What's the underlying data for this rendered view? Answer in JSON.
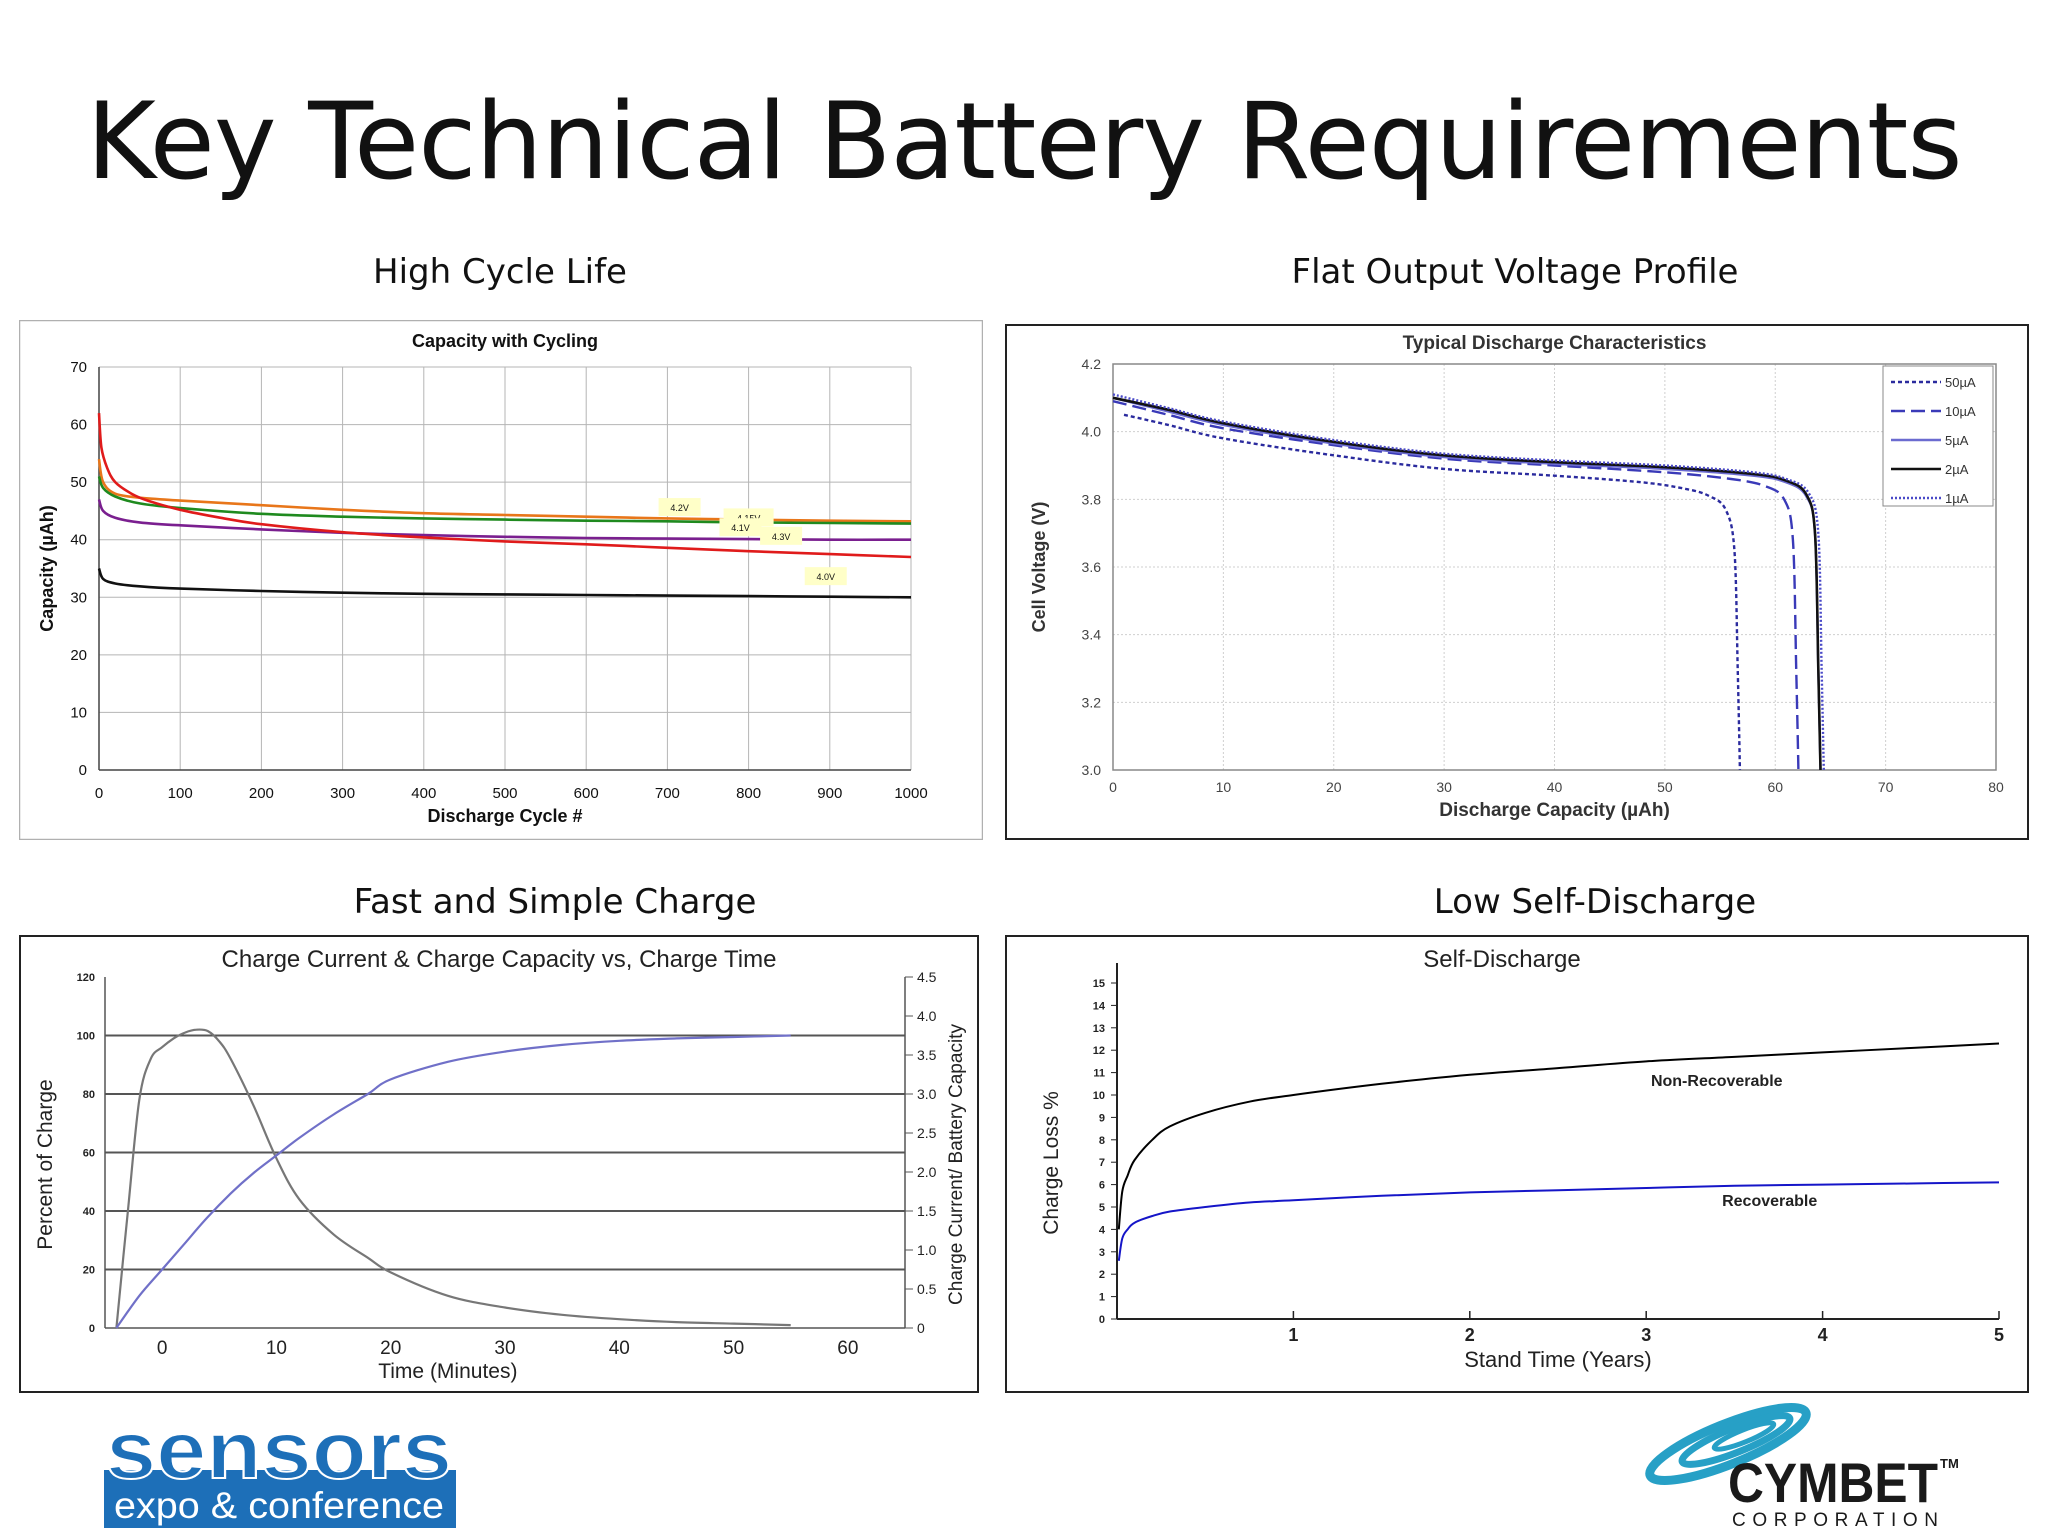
{
  "slide": {
    "title": "Key Technical Battery Requirements"
  },
  "sections": {
    "high_cycle_life": "High Cycle Life",
    "flat_voltage": "Flat Output Voltage Profile",
    "fast_charge": "Fast and Simple Charge",
    "self_discharge": "Low Self-Discharge"
  },
  "logos": {
    "sensors_line1": "sensors",
    "sensors_line2": "expo & conference",
    "cymbet_name": "CYMBET",
    "cymbet_tm": "TM",
    "cymbet_sub": "CORPORATION",
    "sensors_color": "#1d6fb8",
    "cymbet_color": "#1a1a1a",
    "cymbet_swirl_color": "#27a0c6"
  },
  "chart_data": [
    {
      "id": "capacity",
      "type": "line",
      "title": "Capacity with Cycling",
      "xlabel": "Discharge Cycle #",
      "ylabel": "Capacity (µAh)",
      "xlim": [
        0,
        1000
      ],
      "ylim": [
        0,
        70
      ],
      "xticks": [
        0,
        100,
        200,
        300,
        400,
        500,
        600,
        700,
        800,
        900,
        1000
      ],
      "yticks": [
        0,
        10,
        20,
        30,
        40,
        50,
        60,
        70
      ],
      "grid": true,
      "series": [
        {
          "name": "4.2V",
          "color": "#e8761a",
          "x": [
            0,
            5,
            20,
            50,
            100,
            200,
            300,
            400,
            500,
            600,
            700,
            800,
            900,
            1000
          ],
          "y": [
            54,
            50,
            48,
            47.3,
            46.8,
            46,
            45.2,
            44.6,
            44.3,
            44,
            43.7,
            43.5,
            43.3,
            43.2
          ]
        },
        {
          "name": "4.15V",
          "color": "#1f8a1f",
          "x": [
            0,
            5,
            20,
            50,
            100,
            200,
            300,
            400,
            500,
            600,
            700,
            800,
            900,
            1000
          ],
          "y": [
            51,
            49,
            47.5,
            46.3,
            45.5,
            44.5,
            44,
            43.7,
            43.5,
            43.3,
            43.2,
            43,
            42.9,
            42.8
          ]
        },
        {
          "name": "4.1V",
          "color": "#7a1f8f",
          "x": [
            0,
            5,
            20,
            50,
            100,
            200,
            300,
            400,
            500,
            600,
            700,
            800,
            900,
            1000
          ],
          "y": [
            47,
            45,
            43.8,
            43,
            42.5,
            41.8,
            41.2,
            40.8,
            40.5,
            40.3,
            40.2,
            40.1,
            40,
            40
          ]
        },
        {
          "name": "4.3V",
          "color": "#e01b1b",
          "x": [
            0,
            3,
            10,
            20,
            40,
            60,
            100,
            150,
            200,
            300,
            400,
            500,
            600,
            700,
            800,
            900,
            1000
          ],
          "y": [
            62,
            56,
            52.5,
            50,
            48,
            46.8,
            45.2,
            43.8,
            42.7,
            41.3,
            40.4,
            39.7,
            39.2,
            38.6,
            38,
            37.5,
            37
          ]
        },
        {
          "name": "4.0V",
          "color": "#111111",
          "x": [
            0,
            5,
            20,
            50,
            100,
            200,
            300,
            400,
            500,
            600,
            700,
            800,
            900,
            1000
          ],
          "y": [
            35,
            33.2,
            32.4,
            31.9,
            31.5,
            31.1,
            30.8,
            30.6,
            30.5,
            30.4,
            30.3,
            30.2,
            30.1,
            30
          ]
        }
      ],
      "annotations": [
        "4.2V",
        "4.15V",
        "4.1V",
        "4.3V",
        "4.0V"
      ]
    },
    {
      "id": "discharge",
      "type": "line",
      "title": "Typical Discharge Characteristics",
      "xlabel": "Discharge Capacity (µAh)",
      "ylabel": "Cell Voltage (V)",
      "xlim": [
        0,
        80
      ],
      "ylim": [
        3.0,
        4.2
      ],
      "xticks": [
        0,
        10,
        20,
        30,
        40,
        50,
        60,
        70,
        80
      ],
      "yticks": [
        "3.0",
        "3.2",
        "3.4",
        "3.6",
        "3.8",
        "4.0",
        "4.2"
      ],
      "grid": true,
      "legend_position": "top-right",
      "series": [
        {
          "name": "50µA",
          "color": "#2b2b9e",
          "dash": "4,3",
          "x": [
            1,
            5,
            10,
            20,
            30,
            40,
            48,
            52,
            54,
            55.5,
            56.3,
            56.6,
            56.8
          ],
          "y": [
            4.05,
            4.02,
            3.98,
            3.93,
            3.89,
            3.87,
            3.85,
            3.83,
            3.81,
            3.77,
            3.65,
            3.3,
            3.0
          ]
        },
        {
          "name": "10µA",
          "color": "#3a3ab8",
          "dash": "14,6",
          "x": [
            0,
            5,
            10,
            20,
            30,
            40,
            50,
            56,
            59,
            60.8,
            61.6,
            61.9,
            62.1
          ],
          "y": [
            4.09,
            4.05,
            4.01,
            3.96,
            3.92,
            3.9,
            3.88,
            3.86,
            3.84,
            3.8,
            3.68,
            3.3,
            3.0
          ]
        },
        {
          "name": "5µA",
          "color": "#6b6bd0",
          "dash": "",
          "x": [
            0,
            5,
            10,
            20,
            30,
            40,
            50,
            58,
            61,
            62.8,
            63.6,
            63.9,
            64.1
          ],
          "y": [
            4.1,
            4.06,
            4.02,
            3.965,
            3.925,
            3.905,
            3.89,
            3.87,
            3.85,
            3.81,
            3.7,
            3.3,
            3.0
          ]
        },
        {
          "name": "2µA",
          "color": "#111111",
          "dash": "",
          "x": [
            0,
            5,
            10,
            20,
            30,
            40,
            50,
            58,
            61,
            62.8,
            63.6,
            63.9,
            64.1
          ],
          "y": [
            4.1,
            4.065,
            4.025,
            3.97,
            3.93,
            3.91,
            3.895,
            3.875,
            3.855,
            3.815,
            3.7,
            3.3,
            3.0
          ]
        },
        {
          "name": "1µA",
          "color": "#4a4ac8",
          "dash": "2,2",
          "x": [
            0,
            5,
            10,
            20,
            30,
            40,
            50,
            58,
            61,
            63,
            63.9,
            64.2,
            64.4
          ],
          "y": [
            4.11,
            4.07,
            4.03,
            3.975,
            3.935,
            3.915,
            3.9,
            3.88,
            3.86,
            3.82,
            3.7,
            3.3,
            3.0
          ]
        }
      ]
    },
    {
      "id": "charge",
      "type": "line",
      "title": "Charge Current & Charge Capacity vs, Charge Time",
      "xlabel": "Time (Minutes)",
      "ylabel": "Percent of Charge",
      "y2label": "Charge Current/ Battery Capacity",
      "xlim": [
        -5,
        65
      ],
      "ylim": [
        0,
        120
      ],
      "y2lim": [
        0,
        4.5
      ],
      "xticks": [
        0,
        10,
        20,
        30,
        40,
        50,
        60
      ],
      "yticks": [
        0,
        20,
        40,
        60,
        80,
        100,
        120
      ],
      "y2ticks": [
        "0",
        "0.5",
        "1.0",
        "1.5",
        "2.0",
        "2.5",
        "3.0",
        "3.5",
        "4.0",
        "4.5"
      ],
      "grid": true,
      "series": [
        {
          "name": "",
          "color": "#777777",
          "x": [
            -4,
            -3,
            -2,
            -1,
            0,
            1,
            2,
            3,
            4,
            5,
            6,
            8,
            10,
            12,
            15,
            18,
            20,
            25,
            30,
            35,
            40,
            45,
            50,
            55
          ],
          "y": [
            0,
            40,
            78,
            92,
            96,
            99,
            101,
            102,
            101.5,
            98,
            92,
            76,
            58,
            44,
            32,
            24,
            19,
            11,
            7,
            4.5,
            3,
            2,
            1.5,
            1
          ]
        },
        {
          "name": "",
          "color": "#7070c8",
          "x": [
            -4,
            -2,
            0,
            2,
            4,
            6,
            8,
            10,
            12,
            15,
            18,
            20,
            25,
            30,
            35,
            40,
            45,
            50,
            55
          ],
          "y": [
            0,
            11,
            20,
            29,
            38,
            46,
            53,
            59,
            65,
            73,
            80,
            85,
            91,
            94.5,
            96.8,
            98.2,
            99,
            99.5,
            100
          ]
        }
      ]
    },
    {
      "id": "self_discharge",
      "type": "line",
      "title": "Self-Discharge",
      "xlabel": "Stand Time (Years)",
      "ylabel": "Charge Loss %",
      "xlim": [
        0,
        5
      ],
      "ylim": [
        0,
        15
      ],
      "xticks": [
        1,
        2,
        3,
        4,
        5
      ],
      "yticks": [
        0,
        1,
        2,
        3,
        4,
        5,
        6,
        7,
        8,
        9,
        10,
        11,
        12,
        13,
        14,
        15
      ],
      "grid": false,
      "series": [
        {
          "name": "Non-Recoverable",
          "color": "#000000",
          "x": [
            0.01,
            0.03,
            0.06,
            0.1,
            0.2,
            0.3,
            0.5,
            0.75,
            1,
            1.5,
            2,
            2.5,
            3,
            3.5,
            4,
            4.5,
            5
          ],
          "y": [
            4,
            5.7,
            6.4,
            7.1,
            8,
            8.6,
            9.2,
            9.7,
            10,
            10.5,
            10.9,
            11.2,
            11.5,
            11.7,
            11.9,
            12.1,
            12.3
          ]
        },
        {
          "name": "Recoverable",
          "color": "#1515c8",
          "x": [
            0.01,
            0.03,
            0.06,
            0.1,
            0.2,
            0.3,
            0.5,
            0.75,
            1,
            1.5,
            2,
            2.5,
            3,
            3.5,
            4,
            4.5,
            5
          ],
          "y": [
            2.6,
            3.6,
            4,
            4.3,
            4.6,
            4.8,
            5,
            5.2,
            5.3,
            5.5,
            5.65,
            5.75,
            5.85,
            5.95,
            6,
            6.05,
            6.1
          ]
        }
      ],
      "annotations": [
        "Non-Recoverable",
        "Recoverable"
      ]
    }
  ]
}
